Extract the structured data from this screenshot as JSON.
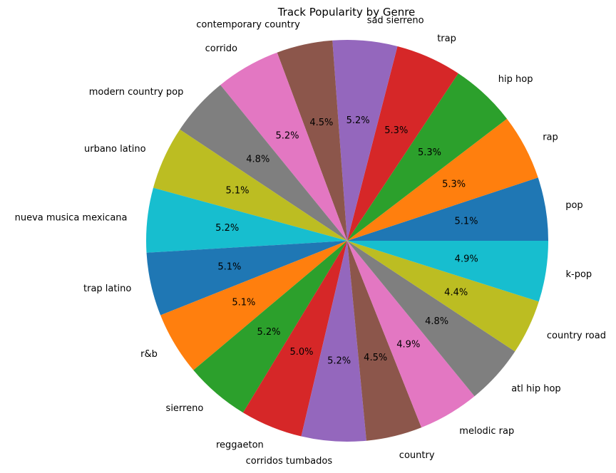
{
  "chart_data": {
    "type": "pie",
    "title": "Track Popularity by Genre",
    "start_angle_deg": 0,
    "direction": "counterclockwise",
    "slices": [
      {
        "label": "pop",
        "value": 5.1,
        "pct_label": "5.1%",
        "color": "#1f77b4"
      },
      {
        "label": "rap",
        "value": 5.3,
        "pct_label": "5.3%",
        "color": "#ff7f0e"
      },
      {
        "label": "hip hop",
        "value": 5.3,
        "pct_label": "5.3%",
        "color": "#2ca02c"
      },
      {
        "label": "trap",
        "value": 5.3,
        "pct_label": "5.3%",
        "color": "#d62728"
      },
      {
        "label": "sad sierreno",
        "value": 5.2,
        "pct_label": "5.2%",
        "color": "#9467bd"
      },
      {
        "label": "contemporary country",
        "value": 4.5,
        "pct_label": "4.5%",
        "color": "#8c564b"
      },
      {
        "label": "corrido",
        "value": 5.2,
        "pct_label": "5.2%",
        "color": "#e377c2"
      },
      {
        "label": "modern country pop",
        "value": 4.8,
        "pct_label": "4.8%",
        "color": "#7f7f7f"
      },
      {
        "label": "urbano latino",
        "value": 5.1,
        "pct_label": "5.1%",
        "color": "#bcbd22"
      },
      {
        "label": "nueva musica mexicana",
        "value": 5.2,
        "pct_label": "5.2%",
        "color": "#17becf"
      },
      {
        "label": "trap latino",
        "value": 5.1,
        "pct_label": "5.1%",
        "color": "#1f77b4"
      },
      {
        "label": "r&b",
        "value": 5.1,
        "pct_label": "5.1%",
        "color": "#ff7f0e"
      },
      {
        "label": "sierreno",
        "value": 5.2,
        "pct_label": "5.2%",
        "color": "#2ca02c"
      },
      {
        "label": "reggaeton",
        "value": 5.0,
        "pct_label": "5.0%",
        "color": "#d62728"
      },
      {
        "label": "corridos tumbados",
        "value": 5.2,
        "pct_label": "5.2%",
        "color": "#9467bd"
      },
      {
        "label": "country",
        "value": 4.5,
        "pct_label": "4.5%",
        "color": "#8c564b"
      },
      {
        "label": "melodic rap",
        "value": 4.9,
        "pct_label": "4.9%",
        "color": "#e377c2"
      },
      {
        "label": "atl hip hop",
        "value": 4.8,
        "pct_label": "4.8%",
        "color": "#7f7f7f"
      },
      {
        "label": "country road",
        "value": 4.4,
        "pct_label": "4.4%",
        "color": "#bcbd22"
      },
      {
        "label": "k-pop",
        "value": 4.9,
        "pct_label": "4.9%",
        "color": "#17becf"
      }
    ]
  }
}
